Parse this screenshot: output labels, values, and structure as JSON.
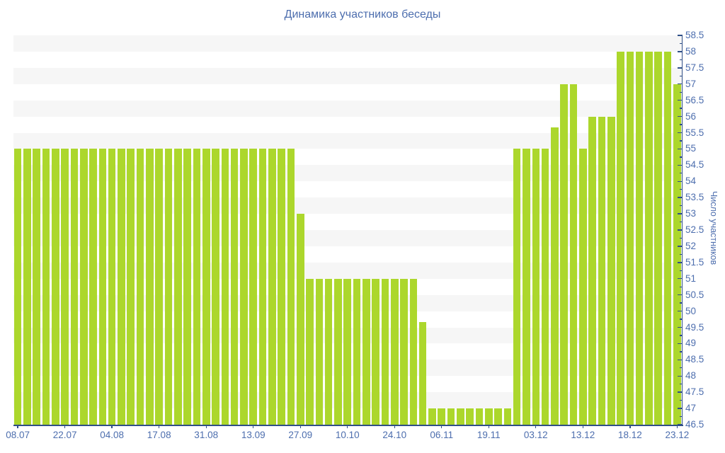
{
  "title": "Динамика участников беседы",
  "chart_data": {
    "type": "bar",
    "title": "Динамика участников беседы",
    "xlabel": "",
    "ylabel": "Число участников",
    "ylim": [
      46.5,
      58.5
    ],
    "y_tick_step": 0.5,
    "y_minor_tick_step": 0.25,
    "legend": "none",
    "grid": "horizontal striped bands, no gridlines",
    "axis_position": "y-axis on right, x-axis on bottom",
    "y_tick_labels": [
      "46.5",
      "47",
      "47.5",
      "48",
      "48.5",
      "49",
      "49.5",
      "50",
      "50.5",
      "51",
      "51.5",
      "52",
      "52.5",
      "53",
      "53.5",
      "54",
      "54.5",
      "55",
      "55.5",
      "56",
      "56.5",
      "57",
      "57.5",
      "58",
      "58.5"
    ],
    "x_tick_labels": [
      "08.07",
      "22.07",
      "04.08",
      "17.08",
      "31.08",
      "13.09",
      "27.09",
      "10.10",
      "24.10",
      "06.11",
      "19.11",
      "03.12",
      "13.12",
      "18.12",
      "23.12"
    ],
    "x_tick_every": 5,
    "bar_count": 71,
    "values": [
      55,
      55,
      55,
      55,
      55,
      55,
      55,
      55,
      55,
      55,
      55,
      55,
      55,
      55,
      55,
      55,
      55,
      55,
      55,
      55,
      55,
      55,
      55,
      55,
      55,
      55,
      55,
      55,
      55,
      55,
      53,
      51,
      51,
      51,
      51,
      51,
      51,
      51,
      51,
      51,
      51,
      51,
      51,
      49.66,
      47,
      47,
      47,
      47,
      47,
      47,
      47,
      47,
      47,
      55,
      55,
      55,
      55,
      55.66,
      57,
      57,
      55,
      56,
      56,
      56,
      58,
      58,
      58,
      58,
      58,
      58,
      57
    ]
  },
  "colors": {
    "background": "#ffffff",
    "bar": "#acd72c",
    "stripe_dark": "#f6f6f6",
    "stripe_light": "#ffffff",
    "text": "#4d6eae",
    "axis": "#2f4f87"
  }
}
